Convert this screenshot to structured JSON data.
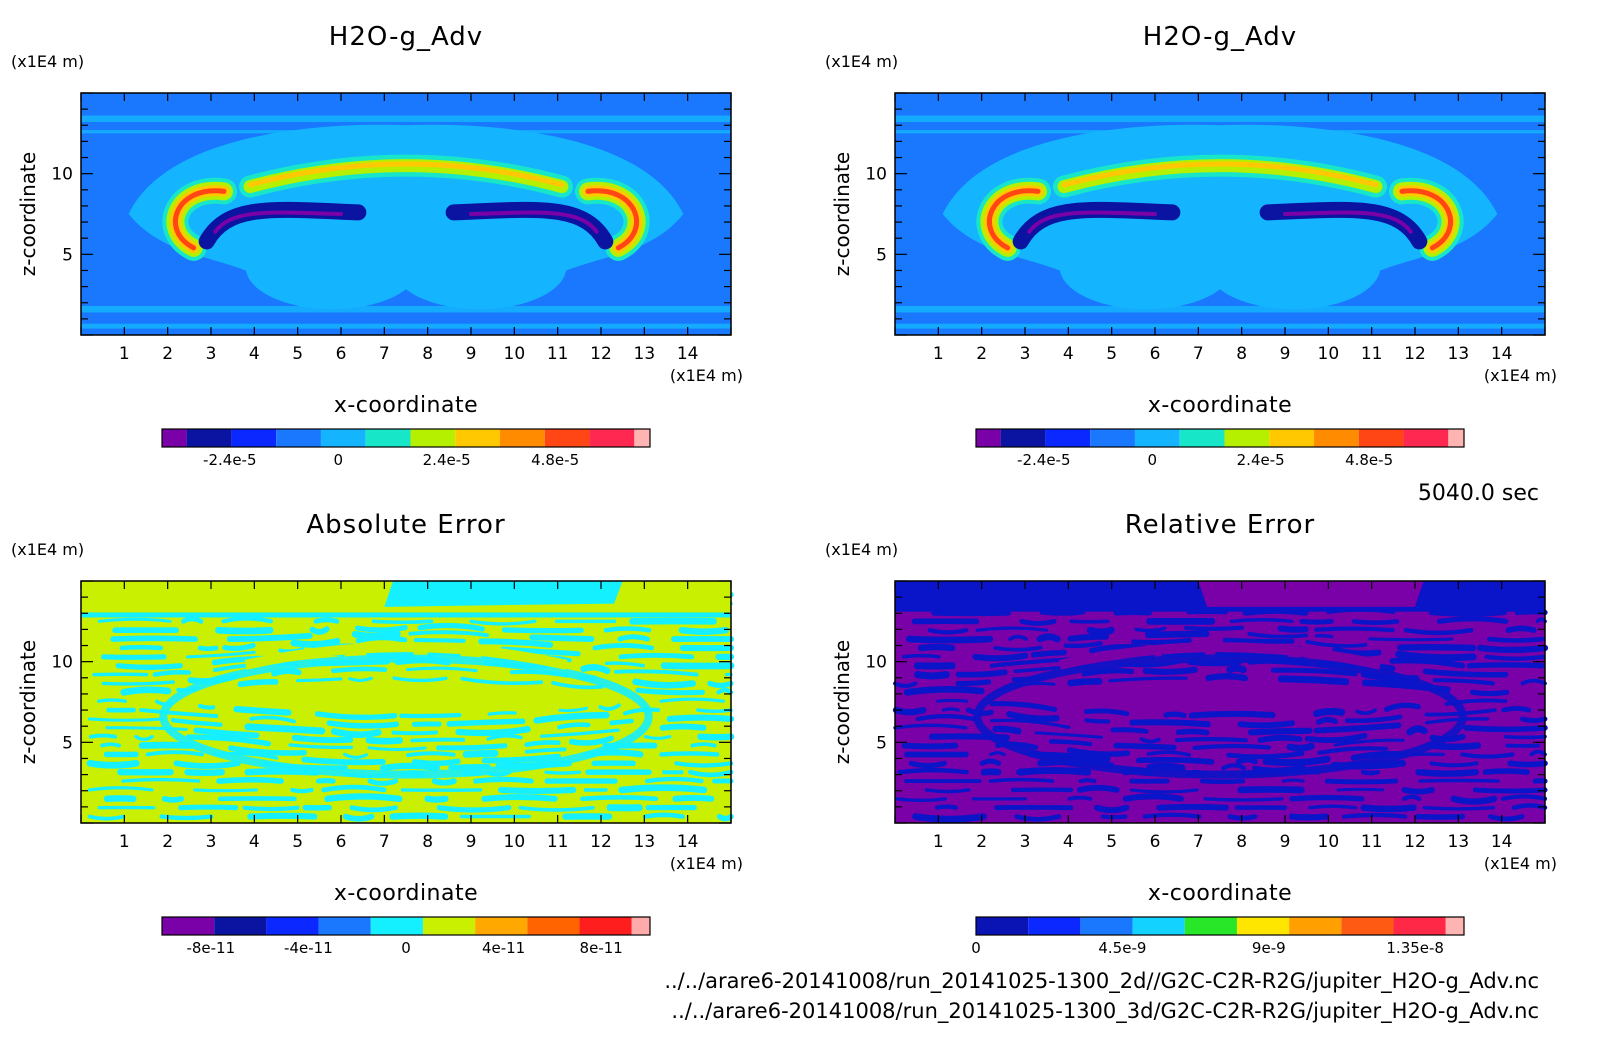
{
  "footer": {
    "time": "5040.0 sec",
    "file1": "../../arare6-20141008/run_20141025-1300_2d//G2C-C2R-R2G/jupiter_H2O-g_Adv.nc",
    "file2": "../../arare6-20141008/run_20141025-1300_3d/G2C-C2R-R2G/jupiter_H2O-g_Adv.nc"
  },
  "chart_data": [
    {
      "type": "heatmap",
      "title": "H2O-g_Adv",
      "xlabel": "x-coordinate",
      "ylabel": "z-coordinate",
      "x_unit": "(x1E4 m)",
      "y_unit": "(x1E4 m)",
      "xlim": [
        0,
        15
      ],
      "ylim": [
        0,
        15
      ],
      "x_ticks": [
        "1",
        "2",
        "3",
        "4",
        "5",
        "6",
        "7",
        "8",
        "9",
        "10",
        "11",
        "12",
        "13",
        "14"
      ],
      "y_ticks": [
        "5",
        "10"
      ],
      "pattern": "plume",
      "background": "#1a78ff",
      "colorbar": {
        "colors": [
          "#7a00a8",
          "#0a14a0",
          "#0a28ff",
          "#1a78ff",
          "#14b4ff",
          "#18e6c8",
          "#b4f000",
          "#ffc800",
          "#ff8c00",
          "#ff4614",
          "#ff2850",
          "#ffb4b4"
        ],
        "tick_labels": [
          "-2.4e-5",
          "0",
          "2.4e-5",
          "4.8e-5"
        ],
        "tick_values": [
          -2.4e-05,
          0,
          2.4e-05,
          4.8e-05
        ],
        "range": [
          -3.9e-05,
          6.9e-05
        ]
      }
    },
    {
      "type": "heatmap",
      "title": "H2O-g_Adv",
      "xlabel": "x-coordinate",
      "ylabel": "z-coordinate",
      "x_unit": "(x1E4 m)",
      "y_unit": "(x1E4 m)",
      "xlim": [
        0,
        15
      ],
      "ylim": [
        0,
        15
      ],
      "x_ticks": [
        "1",
        "2",
        "3",
        "4",
        "5",
        "6",
        "7",
        "8",
        "9",
        "10",
        "11",
        "12",
        "13",
        "14"
      ],
      "y_ticks": [
        "5",
        "10"
      ],
      "pattern": "plume",
      "background": "#1a78ff",
      "colorbar": {
        "colors": [
          "#7a00a8",
          "#0a14a0",
          "#0a28ff",
          "#1a78ff",
          "#14b4ff",
          "#18e6c8",
          "#b4f000",
          "#ffc800",
          "#ff8c00",
          "#ff4614",
          "#ff2850",
          "#ffb4b4"
        ],
        "tick_labels": [
          "-2.4e-5",
          "0",
          "2.4e-5",
          "4.8e-5"
        ],
        "tick_values": [
          -2.4e-05,
          0,
          2.4e-05,
          4.8e-05
        ],
        "range": [
          -3.9e-05,
          6.9e-05
        ]
      }
    },
    {
      "type": "heatmap",
      "title": "Absolute Error",
      "xlabel": "x-coordinate",
      "ylabel": "z-coordinate",
      "x_unit": "(x1E4 m)",
      "y_unit": "(x1E4 m)",
      "xlim": [
        0,
        15
      ],
      "ylim": [
        0,
        15
      ],
      "x_ticks": [
        "1",
        "2",
        "3",
        "4",
        "5",
        "6",
        "7",
        "8",
        "9",
        "10",
        "11",
        "12",
        "13",
        "14"
      ],
      "y_ticks": [
        "5",
        "10"
      ],
      "pattern": "stripes",
      "background": "#c8f000",
      "stripe_color": "#14f0ff",
      "colorbar": {
        "colors": [
          "#7a00a8",
          "#0a14a0",
          "#0a28ff",
          "#1a78ff",
          "#14f0ff",
          "#c8f000",
          "#ffa800",
          "#ff6400",
          "#ff1e1e",
          "#ffaaaa"
        ],
        "tick_labels": [
          "-8e-11",
          "-4e-11",
          "0",
          "4e-11",
          "8e-11"
        ],
        "tick_values": [
          -8e-11,
          -4e-11,
          0,
          4e-11,
          8e-11
        ],
        "range": [
          -1e-10,
          1e-10
        ]
      }
    },
    {
      "type": "heatmap",
      "title": "Relative Error",
      "xlabel": "x-coordinate",
      "ylabel": "z-coordinate",
      "x_unit": "(x1E4 m)",
      "y_unit": "(x1E4 m)",
      "xlim": [
        0,
        15
      ],
      "ylim": [
        0,
        15
      ],
      "x_ticks": [
        "1",
        "2",
        "3",
        "4",
        "5",
        "6",
        "7",
        "8",
        "9",
        "10",
        "11",
        "12",
        "13",
        "14"
      ],
      "y_ticks": [
        "5",
        "10"
      ],
      "pattern": "stripes",
      "background": "#7a00a8",
      "stripe_color": "#0a14c8",
      "colorbar": {
        "colors": [
          "#0a14b4",
          "#0a28ff",
          "#1a78ff",
          "#14d2ff",
          "#28e628",
          "#ffe600",
          "#ffa000",
          "#ff5a14",
          "#ff2846",
          "#ffb4b4"
        ],
        "tick_labels": [
          "0",
          "4.5e-9",
          "9e-9",
          "1.35e-8"
        ],
        "tick_values": [
          0,
          4.5e-09,
          9e-09,
          1.35e-08
        ],
        "range": [
          0,
          1.5e-08
        ]
      }
    }
  ]
}
